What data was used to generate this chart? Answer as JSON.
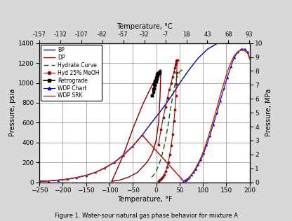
{
  "title_top": "Temperature, °C",
  "xlabel": "Temperature, °F",
  "ylabel_left": "Pressure, psia",
  "ylabel_right": "Pressure, MPa",
  "caption": "Figure 1. Water-sour natural gas phase behavior for mixture A",
  "xlim": [
    -250,
    200
  ],
  "ylim_psia": [
    0,
    1400
  ],
  "ylim_mpa": [
    0,
    10
  ],
  "xticks_f": [
    -250,
    -200,
    -150,
    -100,
    -50,
    0,
    50,
    100,
    150,
    200
  ],
  "xticks_c": [
    -157,
    -132,
    -107,
    -82,
    -57,
    -32,
    -7,
    18,
    43,
    68,
    93
  ],
  "yticks_psia": [
    0,
    200,
    400,
    600,
    800,
    1000,
    1200,
    1400
  ],
  "yticks_mpa": [
    0,
    1,
    2,
    3,
    4,
    5,
    6,
    7,
    8,
    9,
    10
  ],
  "bg_color": "#d8d8d8",
  "plot_bg": "#ffffff",
  "grid_color": "#888888",
  "BP_T": [
    -250,
    -230,
    -210,
    -190,
    -170,
    -150,
    -130,
    -110,
    -90,
    -70,
    -50,
    -30,
    -10,
    10,
    30,
    50,
    70,
    90,
    110,
    130
  ],
  "BP_P": [
    10,
    15,
    22,
    32,
    48,
    70,
    100,
    145,
    200,
    275,
    365,
    475,
    600,
    720,
    850,
    995,
    1130,
    1250,
    1340,
    1395
  ],
  "DP_T": [
    -95,
    -80,
    -60,
    -40,
    -20,
    -10,
    -5,
    0,
    5,
    8,
    10,
    8,
    5,
    0,
    -5,
    -15,
    -30,
    -50,
    -70,
    -95
  ],
  "DP_P": [
    10,
    20,
    50,
    100,
    200,
    280,
    340,
    430,
    600,
    850,
    1130,
    1130,
    1100,
    1060,
    1010,
    920,
    770,
    540,
    280,
    10
  ],
  "HC_T": [
    -10,
    -5,
    0,
    5,
    10,
    15,
    20,
    25,
    30,
    35,
    40,
    45,
    50,
    55,
    57
  ],
  "HC_P": [
    50,
    75,
    115,
    165,
    235,
    320,
    430,
    565,
    720,
    860,
    980,
    1070,
    1110,
    1130,
    1140
  ],
  "HM_T": [
    5,
    8,
    11,
    14,
    17,
    20,
    23,
    26,
    29,
    32,
    35,
    38,
    40,
    42,
    43,
    44,
    45,
    44,
    43,
    42,
    41,
    40,
    38,
    35,
    32,
    28,
    24,
    20,
    15,
    10,
    5
  ],
  "HM_P": [
    15,
    25,
    38,
    55,
    78,
    108,
    150,
    205,
    278,
    368,
    480,
    620,
    730,
    870,
    990,
    1100,
    1230,
    1230,
    1220,
    1200,
    1180,
    1150,
    1110,
    1060,
    1000,
    930,
    850,
    760,
    650,
    530,
    380
  ],
  "Retro_T": [
    -8,
    -6,
    -4,
    -2,
    0,
    2,
    4,
    6,
    8,
    8,
    6,
    4,
    2,
    0,
    -2,
    -4,
    -6,
    -8
  ],
  "Retro_P": [
    870,
    930,
    980,
    1020,
    1055,
    1080,
    1095,
    1105,
    1110,
    1100,
    1085,
    1065,
    1040,
    1010,
    975,
    940,
    905,
    870
  ],
  "WDP_Chart_T": [
    -250,
    -230,
    -210,
    -190,
    -170,
    -150,
    -130,
    -110,
    -90,
    -70,
    -50,
    -30,
    58,
    62,
    65,
    68,
    72,
    76,
    80,
    85,
    90,
    96,
    102,
    108,
    115,
    122,
    130,
    137,
    145,
    152,
    160,
    167,
    175,
    182,
    190,
    196,
    200
  ],
  "WDP_Chart_P": [
    10,
    15,
    22,
    32,
    48,
    70,
    100,
    145,
    200,
    275,
    365,
    475,
    15,
    20,
    28,
    38,
    55,
    75,
    100,
    135,
    178,
    230,
    295,
    375,
    470,
    580,
    700,
    820,
    945,
    1055,
    1165,
    1255,
    1310,
    1340,
    1340,
    1310,
    1250
  ],
  "WDP_SRK_T": [
    -250,
    -230,
    -210,
    -190,
    -170,
    -150,
    -130,
    -110,
    -90,
    -70,
    -50,
    -30,
    58,
    62,
    65,
    68,
    72,
    76,
    80,
    85,
    90,
    96,
    102,
    108,
    115,
    122,
    130,
    137,
    145,
    152,
    160,
    167,
    175,
    182,
    190,
    196,
    200
  ],
  "WDP_SRK_P": [
    10,
    15,
    22,
    32,
    48,
    70,
    100,
    145,
    200,
    275,
    365,
    475,
    15,
    22,
    30,
    42,
    60,
    82,
    110,
    148,
    195,
    253,
    323,
    408,
    510,
    625,
    750,
    875,
    1000,
    1110,
    1205,
    1275,
    1315,
    1330,
    1320,
    1295,
    1240
  ],
  "colors": {
    "BP": "#0000aa",
    "DP": "#800000",
    "HC": "#006400",
    "HM": "#8B1010",
    "Retro": "#000000",
    "WDP_Chart": "#0000cc",
    "WDP_SRK": "#cc2200"
  }
}
